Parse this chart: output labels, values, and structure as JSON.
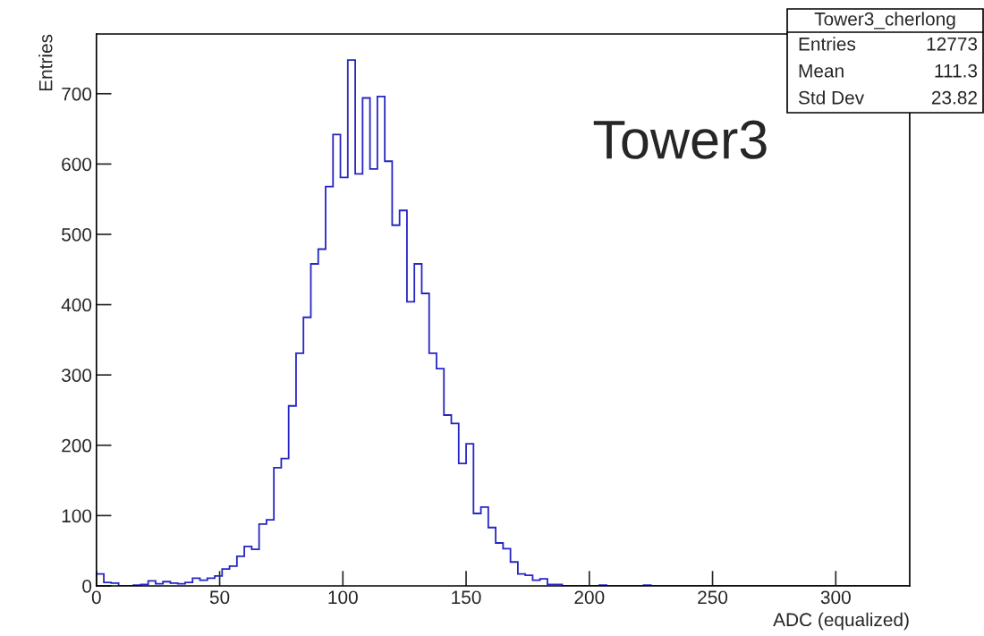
{
  "chart_data": {
    "type": "histogram",
    "xlabel": "ADC (equalized)",
    "ylabel": "Entries",
    "bins": [
      0,
      3,
      6,
      9,
      12,
      15,
      18,
      21,
      24,
      27,
      30,
      33,
      36,
      39,
      42,
      45,
      48,
      51,
      54,
      57,
      60,
      63,
      66,
      69,
      72,
      75,
      78,
      81,
      84,
      87,
      90,
      93,
      96,
      99,
      102,
      105,
      108,
      111,
      114,
      117,
      120,
      123,
      126,
      129,
      132,
      135,
      138,
      141,
      144,
      147,
      150,
      153,
      156,
      159,
      162,
      165,
      168,
      171,
      174,
      177,
      180,
      183,
      186,
      189,
      192,
      195,
      198,
      201,
      204,
      207,
      210,
      213,
      216,
      219,
      222,
      225,
      228,
      231,
      234,
      237,
      240,
      243,
      246,
      249,
      252,
      255,
      258,
      261,
      264,
      267,
      270,
      273,
      276,
      279,
      282,
      285,
      288,
      291,
      294,
      297,
      300,
      303,
      306,
      309,
      312,
      315,
      318,
      321,
      324,
      327,
      330
    ],
    "values": [
      17,
      5,
      4,
      0,
      0,
      1,
      2,
      7,
      3,
      6,
      4,
      3,
      5,
      11,
      8,
      11,
      14,
      24,
      28,
      42,
      56,
      52,
      88,
      94,
      168,
      181,
      256,
      331,
      382,
      458,
      479,
      568,
      642,
      581,
      748,
      586,
      694,
      593,
      696,
      604,
      513,
      534,
      404,
      458,
      416,
      331,
      309,
      243,
      231,
      174,
      202,
      103,
      112,
      83,
      61,
      53,
      34,
      17,
      15,
      8,
      10,
      2,
      2,
      0,
      0,
      0,
      0,
      0,
      1,
      0,
      0,
      0,
      0,
      0,
      1,
      0,
      0,
      0,
      0,
      0,
      0,
      0,
      0,
      0,
      0,
      0,
      0,
      0,
      0,
      0,
      0,
      0,
      0,
      0,
      0,
      0,
      0,
      0,
      0,
      0,
      0,
      0,
      0,
      0,
      0,
      0,
      0,
      0,
      0,
      0
    ],
    "color": "#2626c4",
    "xlim": [
      0,
      330
    ],
    "xticks": [
      0,
      50,
      100,
      150,
      200,
      250,
      300
    ],
    "ylim": [
      0,
      785
    ],
    "yticks": [
      0,
      100,
      200,
      300,
      400,
      500,
      600,
      700
    ],
    "grid": false,
    "annotations": [
      "Tower3_cherlong",
      "Entries",
      "12773",
      "Mean",
      "111.3",
      "Std Dev",
      "23.82",
      "Tower3"
    ]
  }
}
